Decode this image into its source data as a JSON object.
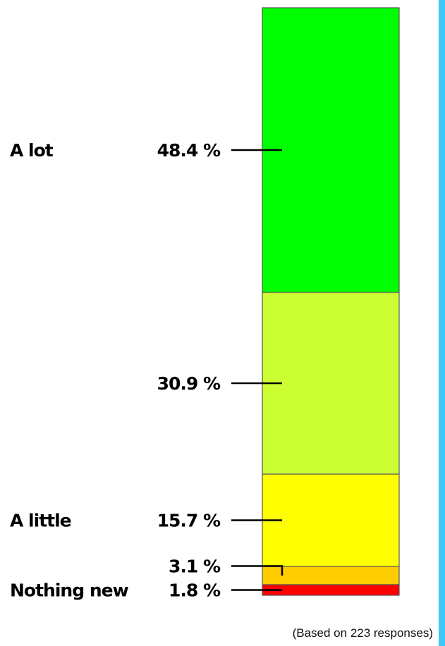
{
  "chart_data": {
    "type": "bar",
    "stacked": true,
    "categories": [
      "A lot",
      "",
      "A little",
      "",
      "Nothing new"
    ],
    "series": [
      {
        "values": [
          48.4,
          30.9,
          15.7,
          3.1,
          1.8
        ]
      }
    ],
    "data_labels": [
      "48.4 %",
      "30.9 %",
      "15.7 %",
      "3.1 %",
      "1.8 %"
    ],
    "colors": [
      "#00ff00",
      "#ccff33",
      "#ffff00",
      "#ffcc00",
      "#ff0000"
    ],
    "ylim": [
      0,
      100
    ]
  },
  "footer": "(Based on 223 responses)",
  "accent": "#3cc8f0"
}
